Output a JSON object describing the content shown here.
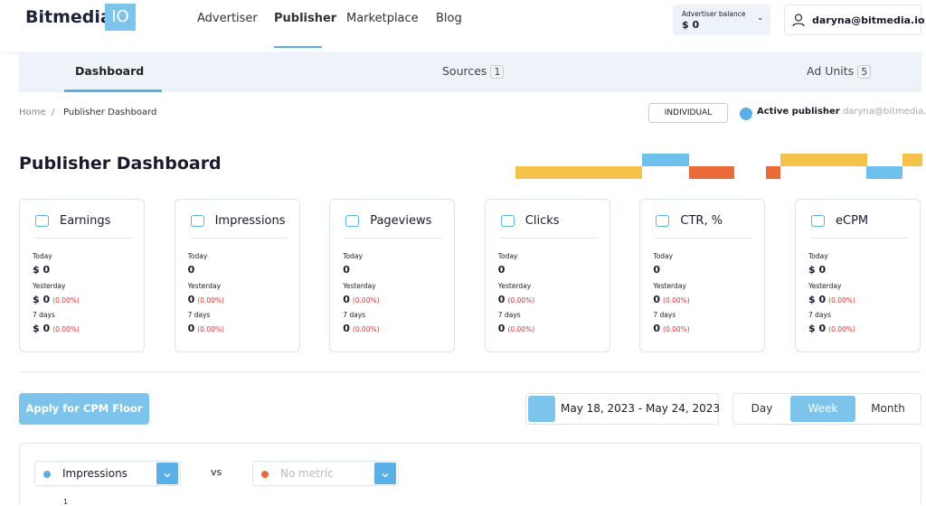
{
  "header": {
    "logo": "Bitmedia",
    "logo_badge": "IO",
    "nav": [
      "Advertiser",
      "Publisher",
      "Marketplace",
      "Blog"
    ],
    "active_nav": 1,
    "balance_label": "Advertiser balance",
    "balance_value": "$ 0",
    "user": "daryna@bitmedia.io"
  },
  "tabs": [
    {
      "label": "Dashboard"
    },
    {
      "label": "Sources",
      "count": "1"
    },
    {
      "label": "Ad Units",
      "count": "5"
    }
  ],
  "breadcrumb": [
    "Home",
    "Publisher Dashboard"
  ],
  "account_type": "INDIVIDUAL",
  "status": {
    "label": "Active publisher",
    "email": "daryna@bitmedia.io"
  },
  "title": "Publisher Dashboard",
  "cards": [
    {
      "title": "Earnings",
      "today_label": "Today",
      "today": "$ 0",
      "yesterday_label": "Yesterday",
      "yesterday": "$ 0",
      "yesterday_change": "(0.00%)",
      "week_label": "7 days",
      "week": "$ 0",
      "week_change": "(0.00%)"
    },
    {
      "title": "Impressions",
      "today_label": "Today",
      "today": "0",
      "yesterday_label": "Yesterday",
      "yesterday": "0",
      "yesterday_change": "(0.00%)",
      "week_label": "7 days",
      "week": "0",
      "week_change": "(0.00%)"
    },
    {
      "title": "Pageviews",
      "today_label": "Today",
      "today": "0",
      "yesterday_label": "Yesterday",
      "yesterday": "0",
      "yesterday_change": "(0.00%)",
      "week_label": "7 days",
      "week": "0",
      "week_change": "(0.00%)"
    },
    {
      "title": "Clicks",
      "today_label": "Today",
      "today": "0",
      "yesterday_label": "Yesterday",
      "yesterday": "0",
      "yesterday_change": "(0.00%)",
      "week_label": "7 days",
      "week": "0",
      "week_change": "(0.00%)"
    },
    {
      "title": "CTR, %",
      "today_label": "Today",
      "today": "0",
      "yesterday_label": "Yesterday",
      "yesterday": "0",
      "yesterday_change": "(0.00%)",
      "week_label": "7 days",
      "week": "0",
      "week_change": "(0.00%)"
    },
    {
      "title": "eCPM",
      "today_label": "Today",
      "today": "$ 0",
      "yesterday_label": "Yesterday",
      "yesterday": "$ 0",
      "yesterday_change": "(0.00%)",
      "week_label": "7 days",
      "week": "$ 0",
      "week_change": "(0.00%)"
    }
  ],
  "cpm_button": "Apply for CPM Floor",
  "date_range": "May 18, 2023 - May 24, 2023",
  "periods": [
    "Day",
    "Week",
    "Month"
  ],
  "active_period": 1,
  "metric": "Impressions",
  "vs": "vs",
  "second_metric": "No metric",
  "y_axis_top": "1"
}
